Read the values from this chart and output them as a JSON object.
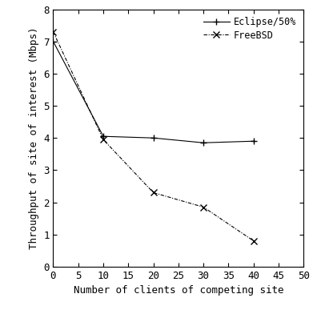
{
  "eclipse_x": [
    0,
    10,
    20,
    30,
    40
  ],
  "eclipse_y": [
    7.0,
    4.05,
    4.0,
    3.85,
    3.9
  ],
  "freebsd_x": [
    0,
    10,
    20,
    30,
    40
  ],
  "freebsd_y": [
    7.3,
    3.95,
    2.3,
    1.85,
    0.8
  ],
  "xlabel": "Number of clients of competing site",
  "ylabel": "Throughput of site of interest (Mbps)",
  "xlim": [
    0,
    50
  ],
  "ylim": [
    0,
    8
  ],
  "xticks": [
    0,
    5,
    10,
    15,
    20,
    25,
    30,
    35,
    40,
    45,
    50
  ],
  "yticks": [
    0,
    1,
    2,
    3,
    4,
    5,
    6,
    7,
    8
  ],
  "legend_eclipse": "Eclipse/50%",
  "legend_freebsd": "FreeBSD",
  "eclipse_color": "#000000",
  "freebsd_color": "#000000",
  "background_color": "#ffffff"
}
